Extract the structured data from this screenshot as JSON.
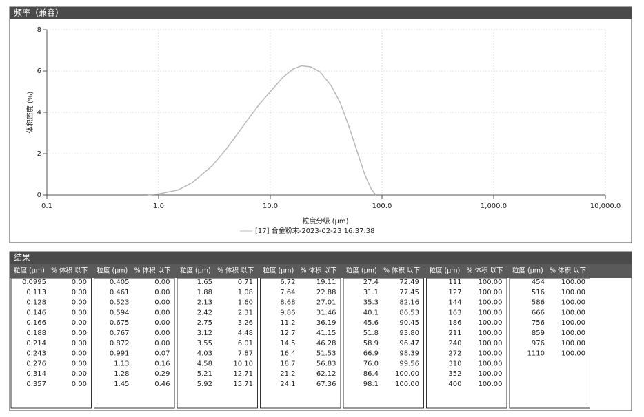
{
  "chart_data": {
    "type": "line",
    "title": "频率（兼容）",
    "x_label": "粒度分级 (μm)",
    "y_label": "体积密度 (%)",
    "log_x": true,
    "grid": true,
    "xlim": [
      0.1,
      10000
    ],
    "ylim": [
      0,
      8
    ],
    "xticks": [
      0.1,
      {
        "value": 1,
        "label": "1.0"
      },
      {
        "value": 10,
        "label": "10.0"
      },
      {
        "value": 100,
        "label": "100.0"
      },
      {
        "value": 1000,
        "label": "1,000.0"
      },
      {
        "value": 10000,
        "label": "10,000.0"
      }
    ],
    "yticks": [
      0,
      2,
      4,
      6,
      8
    ],
    "series": [
      {
        "name": "[17] 合金粉末-2023-02-23 16:37:38",
        "color": "#b8b8b8",
        "x": [
          0.8,
          1.0,
          1.5,
          2,
          3,
          4,
          5,
          6,
          8,
          10,
          13,
          16,
          19,
          23,
          28,
          35,
          42,
          50,
          60,
          70,
          80,
          88
        ],
        "values": [
          0,
          0.05,
          0.25,
          0.6,
          1.4,
          2.2,
          2.9,
          3.5,
          4.4,
          5.0,
          5.7,
          6.1,
          6.25,
          6.2,
          5.95,
          5.3,
          4.5,
          3.4,
          2.1,
          1.0,
          0.3,
          0
        ]
      }
    ]
  },
  "results": {
    "title": "结果",
    "header": [
      "粒度 (μm)",
      "% 体积 以下"
    ],
    "groups": [
      [
        [
          "0.0995",
          "0.00"
        ],
        [
          "0.113",
          "0.00"
        ],
        [
          "0.128",
          "0.00"
        ],
        [
          "0.146",
          "0.00"
        ],
        [
          "0.166",
          "0.00"
        ],
        [
          "0.188",
          "0.00"
        ],
        [
          "0.214",
          "0.00"
        ],
        [
          "0.243",
          "0.00"
        ],
        [
          "0.276",
          "0.00"
        ],
        [
          "0.314",
          "0.00"
        ],
        [
          "0.357",
          "0.00"
        ]
      ],
      [
        [
          "0.405",
          "0.00"
        ],
        [
          "0.461",
          "0.00"
        ],
        [
          "0.523",
          "0.00"
        ],
        [
          "0.594",
          "0.00"
        ],
        [
          "0.675",
          "0.00"
        ],
        [
          "0.767",
          "0.00"
        ],
        [
          "0.872",
          "0.00"
        ],
        [
          "0.991",
          "0.07"
        ],
        [
          "1.13",
          "0.16"
        ],
        [
          "1.28",
          "0.29"
        ],
        [
          "1.45",
          "0.46"
        ]
      ],
      [
        [
          "1.65",
          "0.71"
        ],
        [
          "1.88",
          "1.08"
        ],
        [
          "2.13",
          "1.60"
        ],
        [
          "2.42",
          "2.31"
        ],
        [
          "2.75",
          "3.26"
        ],
        [
          "3.12",
          "4.48"
        ],
        [
          "3.55",
          "6.01"
        ],
        [
          "4.03",
          "7.87"
        ],
        [
          "4.58",
          "10.10"
        ],
        [
          "5.21",
          "12.71"
        ],
        [
          "5.92",
          "15.71"
        ]
      ],
      [
        [
          "6.72",
          "19.11"
        ],
        [
          "7.64",
          "22.88"
        ],
        [
          "8.68",
          "27.01"
        ],
        [
          "9.86",
          "31.46"
        ],
        [
          "11.2",
          "36.19"
        ],
        [
          "12.7",
          "41.15"
        ],
        [
          "14.5",
          "46.28"
        ],
        [
          "16.4",
          "51.53"
        ],
        [
          "18.7",
          "56.83"
        ],
        [
          "21.2",
          "62.12"
        ],
        [
          "24.1",
          "67.36"
        ]
      ],
      [
        [
          "27.4",
          "72.49"
        ],
        [
          "31.1",
          "77.45"
        ],
        [
          "35.3",
          "82.16"
        ],
        [
          "40.1",
          "86.53"
        ],
        [
          "45.6",
          "90.45"
        ],
        [
          "51.8",
          "93.80"
        ],
        [
          "58.9",
          "96.47"
        ],
        [
          "66.9",
          "98.39"
        ],
        [
          "76.0",
          "99.56"
        ],
        [
          "86.4",
          "100.00"
        ],
        [
          "98.1",
          "100.00"
        ]
      ],
      [
        [
          "111",
          "100.00"
        ],
        [
          "127",
          "100.00"
        ],
        [
          "144",
          "100.00"
        ],
        [
          "163",
          "100.00"
        ],
        [
          "186",
          "100.00"
        ],
        [
          "211",
          "100.00"
        ],
        [
          "240",
          "100.00"
        ],
        [
          "272",
          "100.00"
        ],
        [
          "310",
          "100.00"
        ],
        [
          "352",
          "100.00"
        ],
        [
          "400",
          "100.00"
        ]
      ],
      [
        [
          "454",
          "100.00"
        ],
        [
          "516",
          "100.00"
        ],
        [
          "586",
          "100.00"
        ],
        [
          "666",
          "100.00"
        ],
        [
          "756",
          "100.00"
        ],
        [
          "859",
          "100.00"
        ],
        [
          "976",
          "100.00"
        ],
        [
          "1110",
          "100.00"
        ]
      ]
    ]
  }
}
